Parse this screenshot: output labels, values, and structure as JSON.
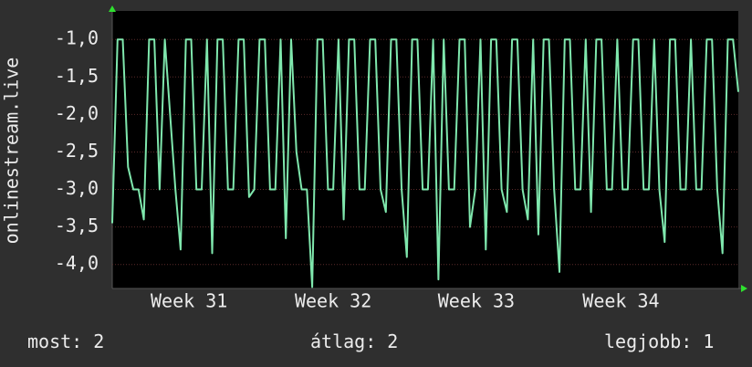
{
  "chart_data": {
    "type": "line",
    "y_label": "onlinestream.live",
    "series": [
      {
        "color": "#7fe7ad",
        "values": [
          -3.45,
          -1.0,
          -1.0,
          -2.7,
          -3.0,
          -3.0,
          -3.4,
          -1.0,
          -1.0,
          -3.0,
          -1.0,
          -2.0,
          -3.0,
          -3.8,
          -1.0,
          -1.0,
          -3.0,
          -3.0,
          -1.0,
          -3.85,
          -1.0,
          -1.0,
          -3.0,
          -3.0,
          -1.0,
          -1.0,
          -3.1,
          -3.0,
          -1.0,
          -1.0,
          -3.0,
          -3.0,
          -1.0,
          -3.65,
          -1.0,
          -2.5,
          -3.0,
          -3.0,
          -4.3,
          -1.0,
          -1.0,
          -3.0,
          -3.0,
          -1.0,
          -3.4,
          -1.0,
          -1.0,
          -3.0,
          -3.0,
          -1.0,
          -1.0,
          -3.0,
          -3.3,
          -1.0,
          -1.0,
          -3.0,
          -3.9,
          -1.0,
          -1.0,
          -3.0,
          -3.0,
          -1.0,
          -4.2,
          -1.0,
          -3.0,
          -3.0,
          -1.0,
          -1.0,
          -3.5,
          -3.0,
          -1.0,
          -3.8,
          -1.0,
          -1.0,
          -3.0,
          -3.3,
          -1.0,
          -1.0,
          -3.0,
          -3.4,
          -1.0,
          -3.6,
          -1.0,
          -1.0,
          -3.0,
          -4.1,
          -1.0,
          -1.0,
          -3.0,
          -3.0,
          -1.0,
          -3.3,
          -1.0,
          -1.0,
          -3.0,
          -3.0,
          -1.0,
          -3.0,
          -3.0,
          -1.0,
          -1.0,
          -3.0,
          -3.0,
          -1.0,
          -3.0,
          -3.7,
          -1.0,
          -1.0,
          -3.0,
          -3.0,
          -1.0,
          -3.0,
          -3.0,
          -1.0,
          -1.0,
          -3.0,
          -3.85,
          -1.0,
          -1.0,
          -1.7
        ]
      }
    ],
    "xlim": [
      0,
      119
    ],
    "xticks": [
      {
        "value": 14.6,
        "label": "Week 31"
      },
      {
        "value": 42.0,
        "label": "Week 32"
      },
      {
        "value": 69.2,
        "label": "Week 33"
      },
      {
        "value": 96.7,
        "label": "Week 34"
      }
    ],
    "ylim": [
      -4.32,
      -0.62
    ],
    "yticks": [
      {
        "value": -1.0,
        "label": "-1,0"
      },
      {
        "value": -1.5,
        "label": "-1,5"
      },
      {
        "value": -2.0,
        "label": "-2,0"
      },
      {
        "value": -2.5,
        "label": "-2,5"
      },
      {
        "value": -3.0,
        "label": "-3,0"
      },
      {
        "value": -3.5,
        "label": "-3,5"
      },
      {
        "value": -4.0,
        "label": "-4,0"
      }
    ],
    "grid": true,
    "stats": [
      {
        "label": "most:",
        "value": 2
      },
      {
        "label": "átlag:",
        "value": 2
      },
      {
        "label": "legjobb:",
        "value": 1
      }
    ]
  }
}
